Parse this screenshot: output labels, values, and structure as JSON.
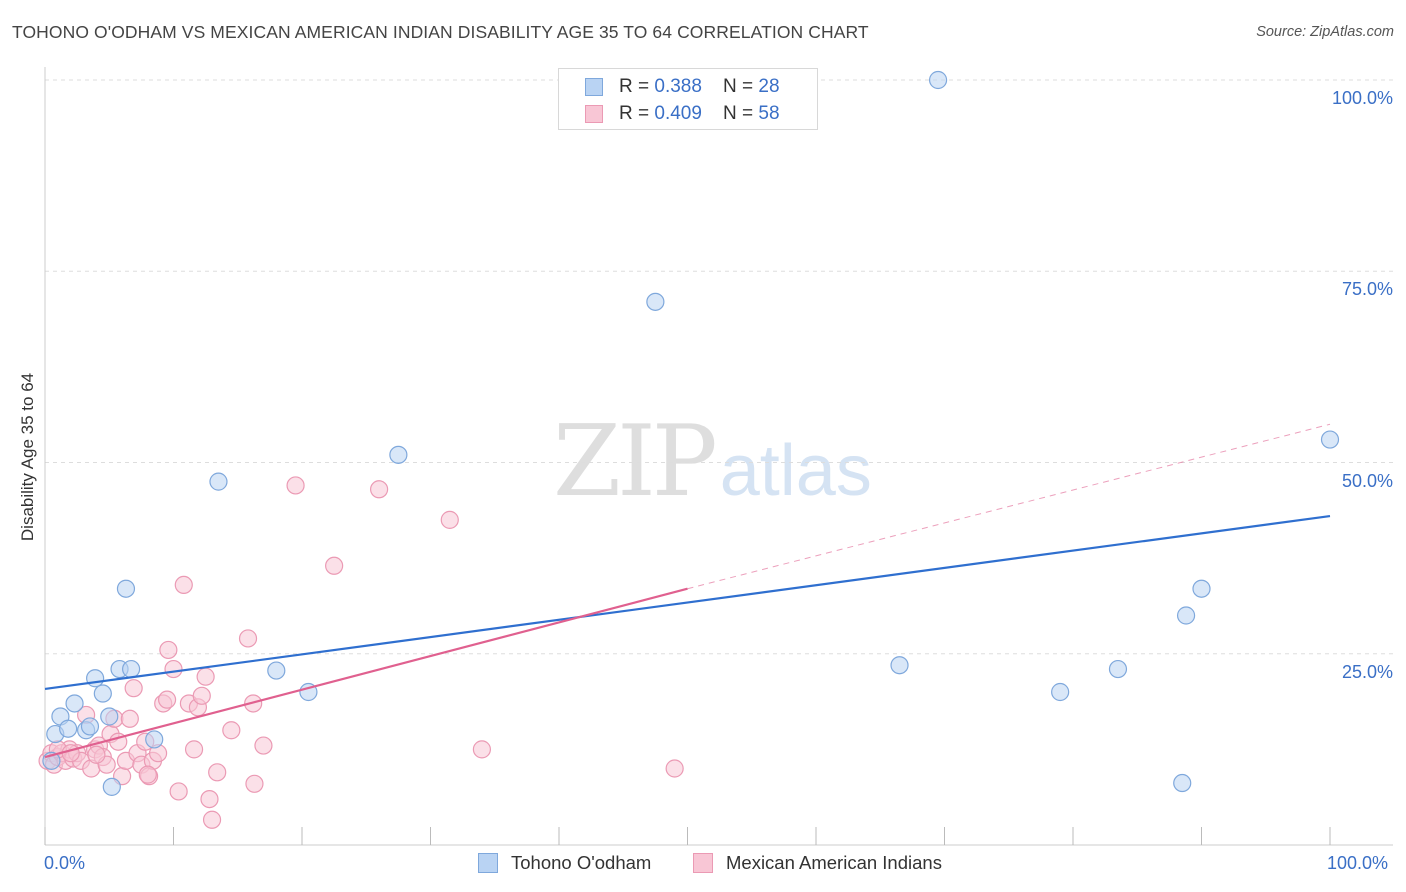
{
  "title": "TOHONO O'ODHAM VS MEXICAN AMERICAN INDIAN DISABILITY AGE 35 TO 64 CORRELATION CHART",
  "source": "Source: ZipAtlas.com",
  "watermark": {
    "zip": "ZIP",
    "atlas": "atlas"
  },
  "legend": {
    "rows": [
      {
        "r_label": "R = ",
        "r_value": "0.388",
        "n_label": "N = ",
        "n_value": "28"
      },
      {
        "r_label": "R = ",
        "r_value": "0.409",
        "n_label": "N = ",
        "n_value": "58"
      }
    ]
  },
  "colors": {
    "blue_fill": "#b9d3f3",
    "blue_stroke": "#7fa8dc",
    "blue_line": "#2f6fcf",
    "pink_fill": "#f8c6d5",
    "pink_stroke": "#eb9ab4",
    "pink_line": "#e0608f",
    "grid": "#dddddd",
    "axis_text": "#3a6fc6"
  },
  "chart_data": {
    "type": "scatter",
    "title": "TOHONO O'ODHAM VS MEXICAN AMERICAN INDIAN DISABILITY AGE 35 TO 64 CORRELATION CHART",
    "xlabel": "",
    "ylabel": "Disability Age 35 to 64",
    "xlim": [
      0,
      100
    ],
    "ylim": [
      0,
      100
    ],
    "x_tick_labels": [
      "0.0%",
      "100.0%"
    ],
    "y_ticks": [
      25,
      50,
      75,
      100
    ],
    "y_tick_labels": [
      "25.0%",
      "50.0%",
      "75.0%",
      "100.0%"
    ],
    "series": [
      {
        "name": "Tohono O'odham",
        "r": 0.388,
        "n": 28,
        "trend": {
          "x0": 0,
          "y0": 20.4,
          "x1": 100,
          "y1": 43.0
        },
        "points": [
          [
            0.8,
            14.5
          ],
          [
            1.2,
            16.8
          ],
          [
            1.8,
            15.2
          ],
          [
            2.3,
            18.5
          ],
          [
            3.2,
            15.0
          ],
          [
            3.5,
            15.5
          ],
          [
            3.9,
            21.8
          ],
          [
            4.5,
            19.8
          ],
          [
            5.0,
            16.8
          ],
          [
            5.2,
            7.6
          ],
          [
            5.8,
            23.0
          ],
          [
            6.3,
            33.5
          ],
          [
            6.7,
            23.0
          ],
          [
            8.5,
            13.8
          ],
          [
            13.5,
            47.5
          ],
          [
            18.0,
            22.8
          ],
          [
            20.5,
            20.0
          ],
          [
            27.5,
            51.0
          ],
          [
            47.5,
            71.0
          ],
          [
            66.5,
            23.5
          ],
          [
            69.5,
            100.0
          ],
          [
            79.0,
            20.0
          ],
          [
            83.5,
            23.0
          ],
          [
            88.5,
            8.1
          ],
          [
            88.8,
            30.0
          ],
          [
            90.0,
            33.5
          ],
          [
            100.0,
            53.0
          ],
          [
            0.5,
            11.0
          ]
        ]
      },
      {
        "name": "Mexican American Indians",
        "r": 0.409,
        "n": 58,
        "trend": {
          "x0": 0,
          "y0": 11.5,
          "x1": 50,
          "y1": 33.5
        },
        "trend_ext": {
          "x0": 50,
          "y0": 33.5,
          "x1": 100,
          "y1": 55.0
        },
        "points": [
          [
            0.2,
            11.0
          ],
          [
            0.5,
            12.0
          ],
          [
            0.7,
            10.5
          ],
          [
            1.0,
            11.5
          ],
          [
            1.3,
            12.0
          ],
          [
            1.6,
            11.0
          ],
          [
            1.9,
            12.5
          ],
          [
            2.2,
            11.3
          ],
          [
            2.5,
            12.0
          ],
          [
            2.8,
            11.0
          ],
          [
            3.2,
            17.0
          ],
          [
            3.6,
            10.0
          ],
          [
            3.9,
            12.5
          ],
          [
            4.2,
            13.0
          ],
          [
            4.5,
            11.5
          ],
          [
            4.8,
            10.5
          ],
          [
            5.1,
            14.5
          ],
          [
            5.4,
            16.5
          ],
          [
            5.7,
            13.5
          ],
          [
            6.0,
            9.0
          ],
          [
            6.3,
            11.0
          ],
          [
            6.6,
            16.5
          ],
          [
            6.9,
            20.5
          ],
          [
            7.2,
            12.0
          ],
          [
            7.5,
            10.5
          ],
          [
            7.8,
            13.5
          ],
          [
            8.1,
            9.0
          ],
          [
            8.4,
            11.0
          ],
          [
            8.8,
            12.0
          ],
          [
            9.2,
            18.5
          ],
          [
            9.6,
            25.5
          ],
          [
            10.0,
            23.0
          ],
          [
            10.4,
            7.0
          ],
          [
            10.8,
            34.0
          ],
          [
            11.2,
            18.5
          ],
          [
            11.6,
            12.5
          ],
          [
            11.9,
            18.0
          ],
          [
            12.2,
            19.5
          ],
          [
            12.5,
            22.0
          ],
          [
            12.8,
            6.0
          ],
          [
            13.0,
            3.3
          ],
          [
            13.4,
            9.5
          ],
          [
            14.5,
            15.0
          ],
          [
            15.8,
            27.0
          ],
          [
            16.2,
            18.5
          ],
          [
            16.3,
            8.0
          ],
          [
            17.0,
            13.0
          ],
          [
            19.5,
            47.0
          ],
          [
            22.5,
            36.5
          ],
          [
            26.0,
            46.5
          ],
          [
            31.5,
            42.5
          ],
          [
            34.0,
            12.5
          ],
          [
            49.0,
            10.0
          ],
          [
            1.0,
            12.5
          ],
          [
            2.0,
            12.0
          ],
          [
            4.0,
            11.8
          ],
          [
            8.0,
            9.2
          ],
          [
            9.5,
            19.0
          ]
        ]
      }
    ]
  }
}
